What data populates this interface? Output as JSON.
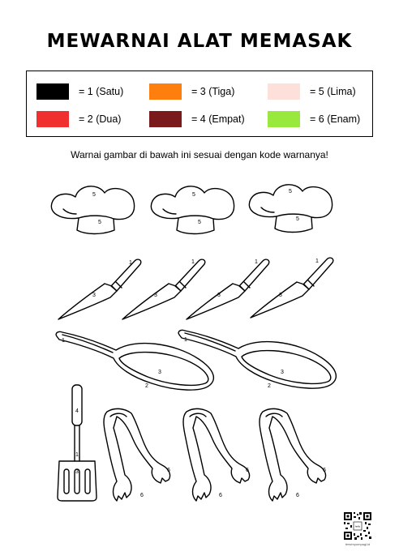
{
  "title": "MEWARNAI ALAT MEMASAK",
  "legend": [
    {
      "color": "#000000",
      "label": "= 1 (Satu)"
    },
    {
      "color": "#ff7f0e",
      "label": "= 3 (Tiga)"
    },
    {
      "color": "#fde0d9",
      "label": "= 5 (Lima)"
    },
    {
      "color": "#f0302f",
      "label": "= 2 (Dua)"
    },
    {
      "color": "#7b1a1a",
      "label": "= 4 (Empat)"
    },
    {
      "color": "#99e83d",
      "label": "= 6 (Enam)"
    }
  ],
  "instruction": "Warnai gambar di bawah ini sesuai dengan kode warnanya!",
  "codes": {
    "hat_top": "5",
    "hat_band": "5",
    "knife_handle": "1",
    "knife_blade": "3",
    "pan_handle": "1",
    "pan_inner": "3",
    "pan_rim": "2",
    "spatula_grip": "4",
    "spatula_neck": "1",
    "spatula_head": "3",
    "tongs_arm": "6"
  },
  "qr": {
    "logo": "hello",
    "caption": "tersenyumpagi.id"
  }
}
